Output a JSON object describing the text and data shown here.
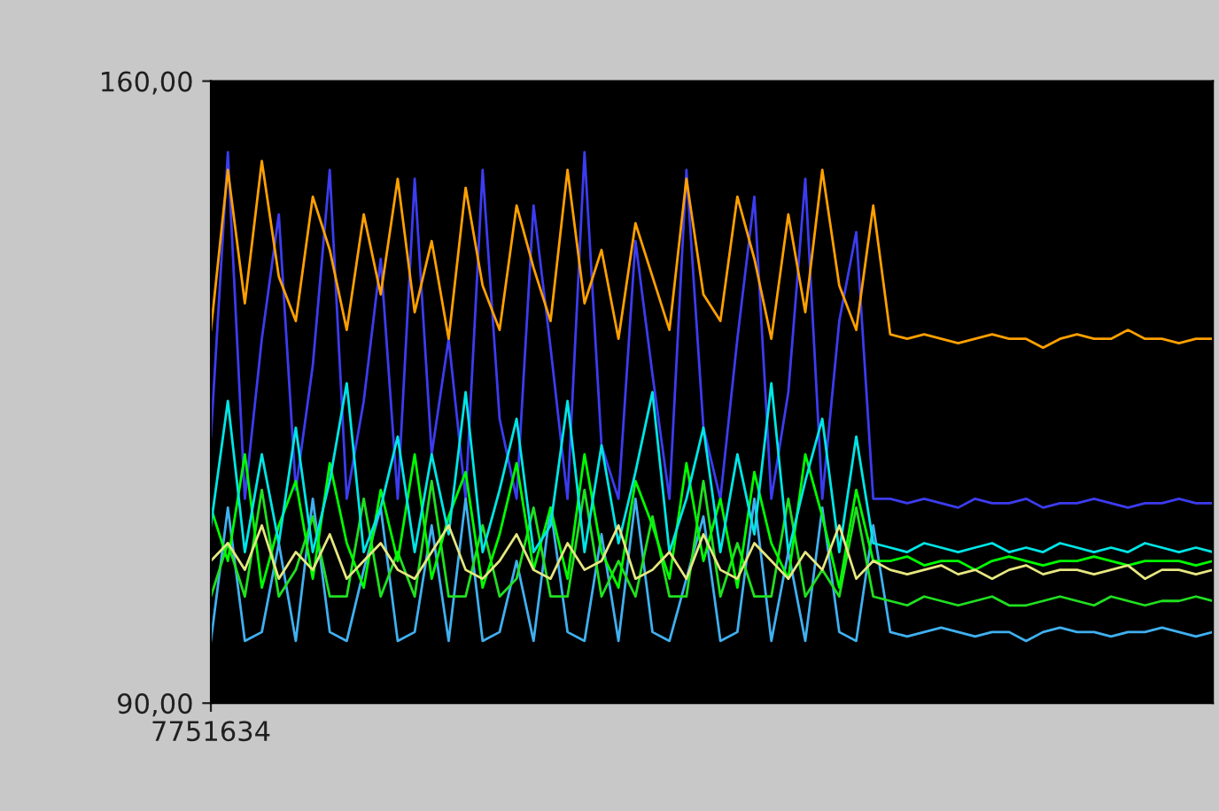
{
  "chart_data": {
    "type": "line",
    "categories": [
      "7751634",
      null,
      null,
      null,
      null,
      null,
      null,
      null,
      null,
      null,
      null,
      null,
      null,
      null,
      null,
      null,
      null,
      null,
      null,
      null,
      null,
      null,
      null,
      null,
      null,
      null,
      null,
      null,
      null,
      null,
      null,
      null,
      null,
      null,
      null,
      null,
      null,
      null,
      null,
      null,
      null,
      null,
      null,
      null,
      null,
      null,
      null,
      null,
      null,
      null,
      null,
      null,
      null,
      null,
      null,
      null,
      null,
      null,
      null,
      null
    ],
    "ylim": [
      90,
      160
    ],
    "yticks": [
      {
        "value": 90,
        "label": "90,00"
      },
      {
        "value": 160,
        "label": "160,00"
      }
    ],
    "grid": false,
    "series": [
      {
        "color": "#3c3cf0",
        "values": [
          120,
          152,
          113,
          131,
          145,
          114,
          128,
          150,
          113,
          124,
          140,
          113,
          149,
          118,
          131,
          113,
          150,
          122,
          113,
          146,
          130,
          113,
          152,
          119,
          113,
          142,
          127,
          113,
          150,
          121,
          113,
          131,
          147,
          113,
          125,
          149,
          113,
          133,
          143,
          113,
          113,
          112.5,
          113,
          112.5,
          112,
          113,
          112.5,
          112.5,
          113,
          112,
          112.5,
          112.5,
          113,
          112.5,
          112,
          112.5,
          112.5,
          113,
          112.5,
          112.5
        ]
      },
      {
        "color": "#40b0f0",
        "values": [
          97,
          112,
          97,
          98,
          108,
          97,
          113,
          98,
          97,
          105,
          112,
          97,
          98,
          110,
          97,
          113,
          97,
          98,
          106,
          97,
          112,
          98,
          97,
          109,
          97,
          113,
          98,
          97,
          104,
          111,
          97,
          98,
          113,
          97,
          107,
          97,
          112,
          98,
          97,
          110,
          98,
          97.5,
          98,
          98.5,
          98,
          97.5,
          98,
          98,
          97,
          98,
          98.5,
          98,
          98,
          97.5,
          98,
          98,
          98.5,
          98,
          97.5,
          98
        ]
      },
      {
        "color": "#20e020",
        "values": [
          102,
          108,
          102,
          114,
          102,
          105,
          111,
          102,
          102,
          113,
          102,
          107,
          102,
          115,
          102,
          102,
          110,
          102,
          104,
          112,
          102,
          102,
          114,
          102,
          106,
          102,
          111,
          102,
          102,
          115,
          102,
          108,
          102,
          102,
          113,
          102,
          105,
          102,
          112,
          102,
          101.5,
          101,
          102,
          101.5,
          101,
          101.5,
          102,
          101,
          101,
          101.5,
          102,
          101.5,
          101,
          102,
          101.5,
          101,
          101.5,
          101.5,
          102,
          101.5
        ]
      },
      {
        "color": "#00ff00",
        "values": [
          112,
          106,
          118,
          103,
          110,
          115,
          104,
          117,
          108,
          103,
          114,
          106,
          118,
          104,
          111,
          116,
          103,
          109,
          117,
          105,
          112,
          104,
          118,
          107,
          103,
          115,
          110,
          104,
          117,
          106,
          113,
          103,
          116,
          108,
          104,
          118,
          111,
          103,
          114,
          106,
          106,
          106.5,
          105.5,
          106,
          106,
          105,
          106,
          106.5,
          106,
          105.5,
          106,
          106,
          106.5,
          106,
          105.5,
          106,
          106,
          106,
          105.5,
          106
        ]
      },
      {
        "color": "#00e6e6",
        "values": [
          110,
          124,
          107,
          118,
          108,
          121,
          107,
          115,
          126,
          107,
          112,
          120,
          107,
          118,
          109,
          125,
          107,
          114,
          122,
          107,
          110,
          124,
          107,
          119,
          108,
          116,
          125,
          107,
          113,
          121,
          107,
          118,
          109,
          126,
          107,
          115,
          122,
          107,
          120,
          108,
          107.5,
          107,
          108,
          107.5,
          107,
          107.5,
          108,
          107,
          107.5,
          107,
          108,
          107.5,
          107,
          107.5,
          107,
          108,
          107.5,
          107,
          107.5,
          107
        ]
      },
      {
        "color": "#e6e680",
        "values": [
          106,
          108,
          105,
          110,
          104,
          107,
          105,
          109,
          104,
          106,
          108,
          105,
          104,
          107,
          110,
          105,
          104,
          106,
          109,
          105,
          104,
          108,
          105,
          106,
          110,
          104,
          105,
          107,
          104,
          109,
          105,
          104,
          108,
          106,
          104,
          107,
          105,
          110,
          104,
          106,
          105,
          104.5,
          105,
          105.5,
          104.5,
          105,
          104,
          105,
          105.5,
          104.5,
          105,
          105,
          104.5,
          105,
          105.5,
          104,
          105,
          105,
          104.5,
          105
        ]
      },
      {
        "color": "#ffa000",
        "values": [
          132,
          150,
          135,
          151,
          138,
          133,
          147,
          141,
          132,
          145,
          136,
          149,
          134,
          142,
          131,
          148,
          137,
          132,
          146,
          139,
          133,
          150,
          135,
          141,
          131,
          144,
          138,
          132,
          149,
          136,
          133,
          147,
          140,
          131,
          145,
          134,
          150,
          137,
          132,
          146,
          131.5,
          131,
          131.5,
          131,
          130.5,
          131,
          131.5,
          131,
          131,
          130,
          131,
          131.5,
          131,
          131,
          132,
          131,
          131,
          130.5,
          131,
          131
        ]
      }
    ]
  }
}
